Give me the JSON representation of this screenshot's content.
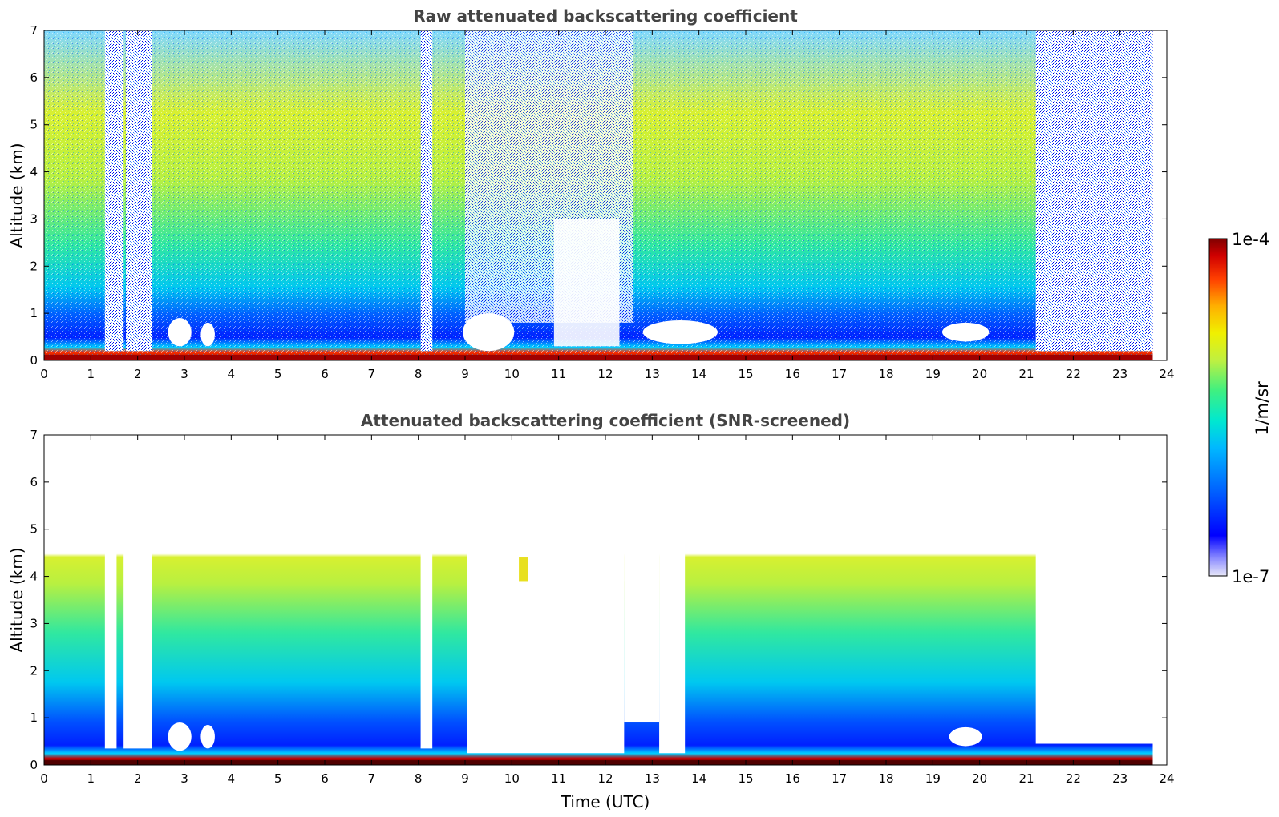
{
  "chart_data": [
    {
      "type": "heatmap",
      "title": "Raw attenuated backscattering coefficient",
      "xlabel": "",
      "ylabel": "Altitude (km)",
      "xlim": [
        0,
        24
      ],
      "ylim": [
        0,
        7
      ],
      "xticks": [
        "0",
        "1",
        "2",
        "3",
        "4",
        "5",
        "6",
        "7",
        "8",
        "9",
        "10",
        "11",
        "12",
        "13",
        "14",
        "15",
        "16",
        "17",
        "18",
        "19",
        "20",
        "21",
        "22",
        "23",
        "24"
      ],
      "yticks": [
        "0",
        "1",
        "2",
        "3",
        "4",
        "5",
        "6",
        "7"
      ],
      "screened": false
    },
    {
      "type": "heatmap",
      "title": "Attenuated backscattering coefficient (SNR-screened)",
      "xlabel": "Time (UTC)",
      "ylabel": "Altitude (km)",
      "xlim": [
        0,
        24
      ],
      "ylim": [
        0,
        7
      ],
      "xticks": [
        "0",
        "1",
        "2",
        "3",
        "4",
        "5",
        "6",
        "7",
        "8",
        "9",
        "10",
        "11",
        "12",
        "13",
        "14",
        "15",
        "16",
        "17",
        "18",
        "19",
        "20",
        "21",
        "22",
        "23",
        "24"
      ],
      "yticks": [
        "0",
        "1",
        "2",
        "3",
        "4",
        "5",
        "6",
        "7"
      ],
      "screened": true
    }
  ],
  "colorbar": {
    "max_label": "1e-4",
    "min_label": "1e-7",
    "unit": "1/m/sr",
    "range": [
      1e-07,
      0.0001
    ],
    "colors": [
      "#e8e8f8",
      "#9090ff",
      "#0000ff",
      "#0060ff",
      "#00b8ff",
      "#00e8d0",
      "#40f080",
      "#c0f040",
      "#f0f000",
      "#ffb000",
      "#ff4000",
      "#d00000",
      "#800000"
    ]
  }
}
